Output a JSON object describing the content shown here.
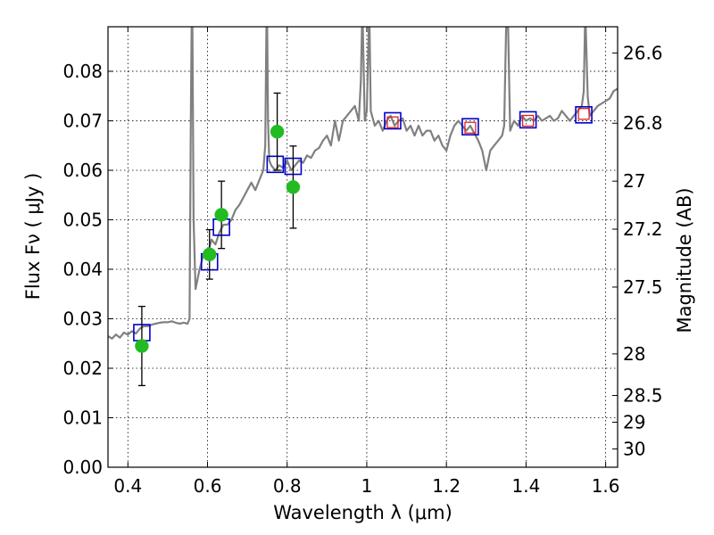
{
  "chart_data": {
    "type": "scatter",
    "title": "",
    "xlabel": "Wavelength  λ (μm)",
    "ylabel": "Flux  Fν  ( μJy )",
    "y2label": "Magnitude (AB)",
    "xlim": [
      0.35,
      1.63
    ],
    "ylim": [
      0.0,
      0.089
    ],
    "grid": true,
    "legend": "none",
    "x_ticks": [
      0.4,
      0.6,
      0.8,
      1.0,
      1.2,
      1.4,
      1.6
    ],
    "x_tick_labels": [
      "0.4",
      "0.6",
      "0.8",
      "1",
      "1.2",
      "1.4",
      "1.6"
    ],
    "y_ticks": [
      0.0,
      0.01,
      0.02,
      0.03,
      0.04,
      0.05,
      0.06,
      0.07,
      0.08
    ],
    "y_tick_labels": [
      "0.00",
      "0.01",
      "0.02",
      "0.03",
      "0.04",
      "0.05",
      "0.06",
      "0.07",
      "0.08"
    ],
    "y2_ticks": [
      {
        "label": "26.6",
        "flux": 0.0837
      },
      {
        "label": "26.8",
        "flux": 0.0695
      },
      {
        "label": "27",
        "flux": 0.0578
      },
      {
        "label": "27.2",
        "flux": 0.0481
      },
      {
        "label": "27.5",
        "flux": 0.0364
      },
      {
        "label": "28",
        "flux": 0.0229
      },
      {
        "label": "28.5",
        "flux": 0.0145
      },
      {
        "label": "29",
        "flux": 0.0091
      },
      {
        "label": "30",
        "flux": 0.0037
      }
    ],
    "colors": {
      "model": "#808080",
      "observed": "#22bb22",
      "model_photometry": "#0000cc",
      "red_boxes": "#dd2222",
      "grid": "#000000"
    },
    "series": [
      {
        "type": "line",
        "x": [
          0.35,
          0.36,
          0.37,
          0.38,
          0.39,
          0.4,
          0.41,
          0.42,
          0.43,
          0.44,
          0.45,
          0.46,
          0.47,
          0.48,
          0.49,
          0.5,
          0.51,
          0.52,
          0.53,
          0.54,
          0.55,
          0.555,
          0.558,
          0.56,
          0.562,
          0.565,
          0.57,
          0.58,
          0.59,
          0.6,
          0.61,
          0.62,
          0.63,
          0.64,
          0.65,
          0.66,
          0.67,
          0.68,
          0.69,
          0.7,
          0.71,
          0.72,
          0.73,
          0.74,
          0.745,
          0.748,
          0.75,
          0.752,
          0.755,
          0.76,
          0.77,
          0.78,
          0.79,
          0.8,
          0.81,
          0.82,
          0.83,
          0.84,
          0.85,
          0.86,
          0.87,
          0.88,
          0.89,
          0.9,
          0.91,
          0.92,
          0.93,
          0.94,
          0.95,
          0.96,
          0.97,
          0.98,
          0.985,
          0.988,
          0.99,
          0.995,
          1.0,
          1.005,
          1.007,
          1.01,
          1.02,
          1.03,
          1.04,
          1.05,
          1.06,
          1.07,
          1.08,
          1.09,
          1.1,
          1.11,
          1.12,
          1.13,
          1.14,
          1.15,
          1.16,
          1.17,
          1.18,
          1.19,
          1.2,
          1.21,
          1.22,
          1.23,
          1.24,
          1.25,
          1.26,
          1.27,
          1.28,
          1.29,
          1.3,
          1.31,
          1.32,
          1.33,
          1.34,
          1.345,
          1.35,
          1.355,
          1.36,
          1.37,
          1.38,
          1.39,
          1.4,
          1.41,
          1.42,
          1.43,
          1.44,
          1.45,
          1.46,
          1.47,
          1.48,
          1.49,
          1.5,
          1.51,
          1.52,
          1.53,
          1.54,
          1.545,
          1.548,
          1.55,
          1.555,
          1.56,
          1.57,
          1.58,
          1.59,
          1.6,
          1.61,
          1.62,
          1.63
        ],
        "y": [
          0.0265,
          0.026,
          0.0268,
          0.0262,
          0.0272,
          0.0268,
          0.0275,
          0.027,
          0.028,
          0.0285,
          0.0285,
          0.0288,
          0.029,
          0.0292,
          0.0293,
          0.0293,
          0.0295,
          0.0292,
          0.029,
          0.0292,
          0.029,
          0.03,
          0.07,
          0.089,
          0.089,
          0.05,
          0.036,
          0.04,
          0.043,
          0.043,
          0.046,
          0.045,
          0.0475,
          0.049,
          0.049,
          0.05,
          0.052,
          0.053,
          0.0545,
          0.056,
          0.0575,
          0.056,
          0.058,
          0.06,
          0.065,
          0.089,
          0.089,
          0.07,
          0.062,
          0.061,
          0.06,
          0.061,
          0.0605,
          0.062,
          0.06,
          0.061,
          0.062,
          0.0615,
          0.063,
          0.0625,
          0.064,
          0.0645,
          0.066,
          0.067,
          0.065,
          0.07,
          0.066,
          0.07,
          0.071,
          0.072,
          0.073,
          0.07,
          0.078,
          0.089,
          0.089,
          0.07,
          0.072,
          0.089,
          0.089,
          0.072,
          0.069,
          0.07,
          0.068,
          0.07,
          0.071,
          0.069,
          0.07,
          0.0705,
          0.068,
          0.069,
          0.067,
          0.069,
          0.067,
          0.068,
          0.068,
          0.066,
          0.067,
          0.065,
          0.064,
          0.067,
          0.069,
          0.07,
          0.069,
          0.068,
          0.069,
          0.0675,
          0.066,
          0.064,
          0.06,
          0.064,
          0.065,
          0.066,
          0.067,
          0.069,
          0.089,
          0.089,
          0.068,
          0.07,
          0.069,
          0.071,
          0.07,
          0.0705,
          0.07,
          0.071,
          0.07,
          0.0705,
          0.071,
          0.07,
          0.0705,
          0.072,
          0.071,
          0.07,
          0.071,
          0.072,
          0.073,
          0.076,
          0.089,
          0.089,
          0.075,
          0.071,
          0.072,
          0.073,
          0.0735,
          0.074,
          0.0745,
          0.076,
          0.0765
        ]
      },
      {
        "type": "scatter",
        "x": [
          0.435,
          0.605,
          0.635,
          0.775,
          0.815
        ],
        "y": [
          0.0245,
          0.043,
          0.051,
          0.0678,
          0.0566
        ],
        "yerr": [
          0.008,
          0.005,
          0.0068,
          0.0078,
          0.0083
        ]
      },
      {
        "type": "scatter",
        "x": [
          0.435,
          0.605,
          0.635,
          0.77,
          0.815,
          1.065,
          1.26,
          1.405,
          1.545
        ],
        "y": [
          0.0272,
          0.0415,
          0.0485,
          0.0612,
          0.0608,
          0.07,
          0.0688,
          0.0702,
          0.0712
        ]
      },
      {
        "type": "scatter",
        "x": [
          1.065,
          1.26,
          1.405,
          1.545
        ],
        "y": [
          0.0697,
          0.0686,
          0.07,
          0.0714
        ]
      }
    ]
  }
}
